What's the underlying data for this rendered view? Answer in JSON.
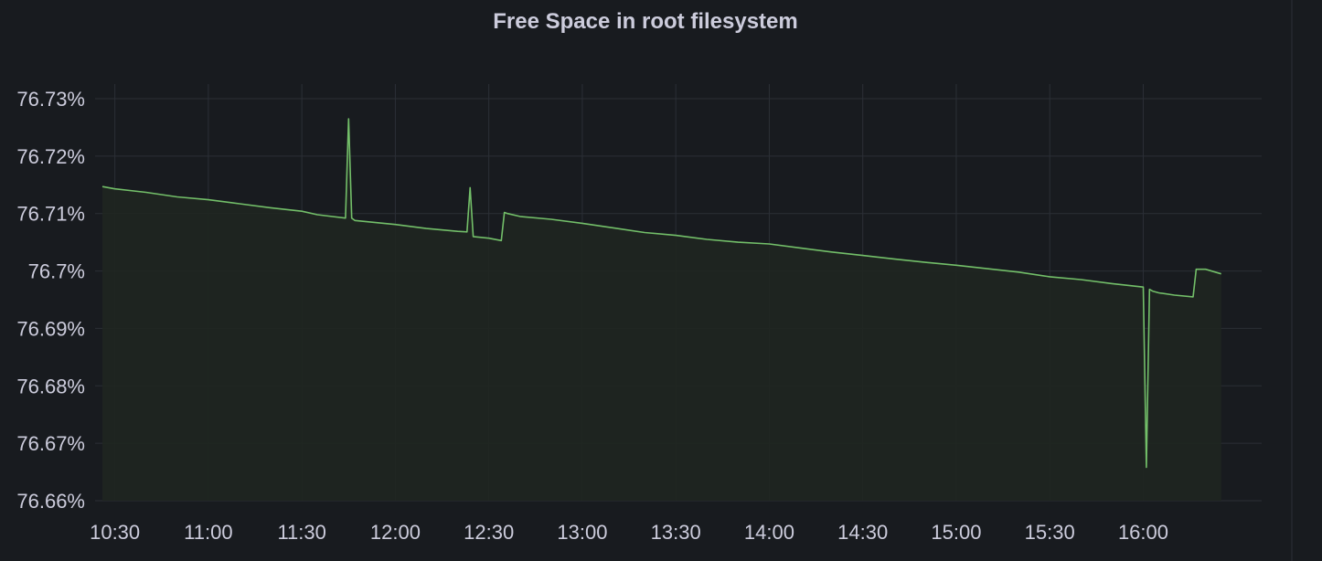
{
  "panel": {
    "title": "Free Space in root filesystem"
  },
  "chart_data": {
    "type": "area",
    "title": "Free Space in root filesystem",
    "xlabel": "",
    "ylabel": "",
    "unit": "%",
    "grid": true,
    "legend": "none",
    "colors": {
      "background": "#181b1f",
      "line": "#73bf69",
      "fill": "#1f2620",
      "grid": "#2b2f36",
      "text": "#ccccdc"
    },
    "ylim": [
      76.66,
      76.73
    ],
    "y_ticks": [
      76.73,
      76.72,
      76.71,
      76.7,
      76.69,
      76.68,
      76.67,
      76.66
    ],
    "y_tick_labels": [
      "76.73%",
      "76.72%",
      "76.71%",
      "76.7%",
      "76.69%",
      "76.68%",
      "76.67%",
      "76.66%"
    ],
    "x_range": [
      "10:26",
      "16:38"
    ],
    "x_ticks": [
      "10:30",
      "11:00",
      "11:30",
      "12:00",
      "12:30",
      "13:00",
      "13:30",
      "14:00",
      "14:30",
      "15:00",
      "15:30",
      "16:00"
    ],
    "series": [
      {
        "x": [
          "10:26",
          "10:30",
          "10:40",
          "10:50",
          "11:00",
          "11:10",
          "11:20",
          "11:30",
          "11:35",
          "11:44",
          "11:45",
          "11:46",
          "11:47",
          "12:00",
          "12:10",
          "12:20",
          "12:23",
          "12:24",
          "12:25",
          "12:30",
          "12:34",
          "12:35",
          "12:36",
          "12:40",
          "12:50",
          "13:00",
          "13:10",
          "13:20",
          "13:30",
          "13:40",
          "13:50",
          "14:00",
          "14:10",
          "14:20",
          "14:30",
          "14:40",
          "14:50",
          "15:00",
          "15:10",
          "15:20",
          "15:30",
          "15:40",
          "15:50",
          "16:00",
          "16:01",
          "16:02",
          "16:03",
          "16:05",
          "16:10",
          "16:16",
          "16:17",
          "16:20",
          "16:25"
        ],
        "y": [
          76.7147,
          76.7143,
          76.7137,
          76.7129,
          76.7124,
          76.7117,
          76.711,
          76.7104,
          76.7098,
          76.7092,
          76.7265,
          76.7092,
          76.7088,
          76.7081,
          76.7074,
          76.7069,
          76.7068,
          76.7145,
          76.706,
          76.7057,
          76.7053,
          76.7102,
          76.71,
          76.7095,
          76.709,
          76.7083,
          76.7075,
          76.7067,
          76.7062,
          76.7055,
          76.705,
          76.7047,
          76.704,
          76.7033,
          76.7027,
          76.7021,
          76.7015,
          76.701,
          76.7004,
          76.6998,
          76.699,
          76.6985,
          76.6978,
          76.6972,
          76.6658,
          76.6968,
          76.6965,
          76.6962,
          76.6958,
          76.6955,
          76.7003,
          76.7003,
          76.6995
        ]
      }
    ]
  }
}
